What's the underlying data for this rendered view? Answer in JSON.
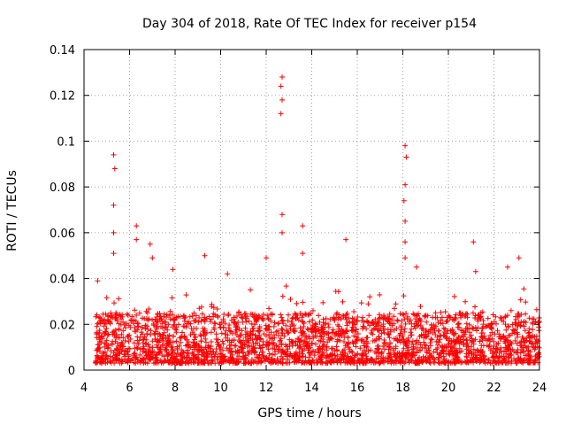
{
  "chart_data": {
    "type": "scatter",
    "title": "Day 304 of 2018, Rate Of TEC Index for receiver p154",
    "xlabel": "GPS time / hours",
    "ylabel": "ROTI / TECUs",
    "xlim": [
      4,
      24
    ],
    "ylim": [
      0,
      0.14
    ],
    "xticks": [
      4,
      6,
      8,
      10,
      12,
      14,
      16,
      18,
      20,
      22,
      24
    ],
    "xtick_labels": [
      "4",
      "6",
      "8",
      "10",
      "12",
      "14",
      "16",
      "18",
      "20",
      "22",
      "24"
    ],
    "yticks": [
      0,
      0.02,
      0.04,
      0.06,
      0.08,
      0.1,
      0.12,
      0.14
    ],
    "ytick_labels": [
      "0",
      "0.02",
      "0.04",
      "0.06",
      "0.08",
      "0.1",
      "0.12",
      "0.14"
    ],
    "grid": true,
    "marker": "+",
    "series": [
      {
        "name": "ROTI",
        "color": "#ff0000",
        "baseline_range": [
          0.003,
          0.025
        ],
        "x_range": [
          4.5,
          24
        ],
        "peaks": [
          {
            "x": 4.6,
            "y": 0.039
          },
          {
            "x": 5.3,
            "y": 0.094
          },
          {
            "x": 5.35,
            "y": 0.088
          },
          {
            "x": 5.3,
            "y": 0.072
          },
          {
            "x": 5.3,
            "y": 0.06
          },
          {
            "x": 5.3,
            "y": 0.051
          },
          {
            "x": 6.3,
            "y": 0.063
          },
          {
            "x": 6.3,
            "y": 0.057
          },
          {
            "x": 6.9,
            "y": 0.055
          },
          {
            "x": 7.0,
            "y": 0.049
          },
          {
            "x": 7.9,
            "y": 0.044
          },
          {
            "x": 9.3,
            "y": 0.05
          },
          {
            "x": 10.3,
            "y": 0.042
          },
          {
            "x": 12.0,
            "y": 0.049
          },
          {
            "x": 12.7,
            "y": 0.128
          },
          {
            "x": 12.65,
            "y": 0.124
          },
          {
            "x": 12.7,
            "y": 0.118
          },
          {
            "x": 12.65,
            "y": 0.112
          },
          {
            "x": 12.7,
            "y": 0.068
          },
          {
            "x": 12.7,
            "y": 0.06
          },
          {
            "x": 13.6,
            "y": 0.063
          },
          {
            "x": 13.6,
            "y": 0.051
          },
          {
            "x": 15.5,
            "y": 0.057
          },
          {
            "x": 18.1,
            "y": 0.098
          },
          {
            "x": 18.15,
            "y": 0.093
          },
          {
            "x": 18.1,
            "y": 0.081
          },
          {
            "x": 18.05,
            "y": 0.074
          },
          {
            "x": 18.1,
            "y": 0.065
          },
          {
            "x": 18.1,
            "y": 0.056
          },
          {
            "x": 18.1,
            "y": 0.049
          },
          {
            "x": 18.6,
            "y": 0.045
          },
          {
            "x": 21.1,
            "y": 0.056
          },
          {
            "x": 21.2,
            "y": 0.043
          },
          {
            "x": 22.6,
            "y": 0.045
          },
          {
            "x": 23.1,
            "y": 0.049
          }
        ]
      }
    ]
  }
}
